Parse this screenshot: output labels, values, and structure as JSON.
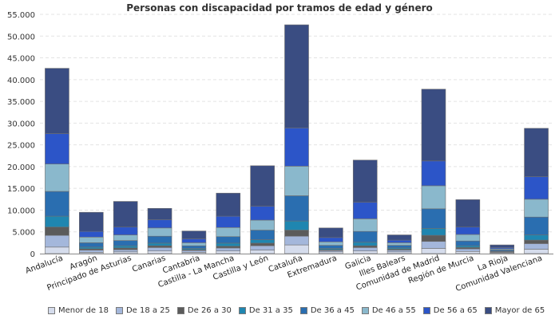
{
  "chart_data": {
    "type": "bar",
    "stacked": true,
    "title": "Personas con discapacidad por tramos de edad y género",
    "xlabel": "",
    "ylabel": "",
    "ylim": [
      0,
      55000
    ],
    "yticks": [
      0,
      5000,
      10000,
      15000,
      20000,
      25000,
      30000,
      35000,
      40000,
      45000,
      50000,
      55000
    ],
    "ytick_labels": [
      "0",
      "5.000",
      "10.000",
      "15.000",
      "20.000",
      "25.000",
      "30.000",
      "35.000",
      "40.000",
      "45.000",
      "50.000",
      "55.000"
    ],
    "grid": true,
    "legend_position": "bottom",
    "categories": [
      "Andalucía",
      "Aragón",
      "Principado de Asturias",
      "Canarias",
      "Cantabria",
      "Castilla - La Mancha",
      "Castilla y León",
      "Cataluña",
      "Extremadura",
      "Galicia",
      "Illes Balears",
      "Comunidad de Madrid",
      "Región de Murcia",
      "La Rioja",
      "Comunidad Valenciana"
    ],
    "series": [
      {
        "name": "Menor de 18",
        "color": "#d5dcec",
        "values": [
          1500,
          300,
          400,
          600,
          300,
          600,
          800,
          2000,
          400,
          600,
          400,
          1200,
          500,
          200,
          1000
        ]
      },
      {
        "name": "De 18 a 25",
        "color": "#a4b7db",
        "values": [
          2700,
          500,
          500,
          800,
          400,
          700,
          1000,
          2000,
          300,
          800,
          400,
          1600,
          600,
          150,
          1300
        ]
      },
      {
        "name": "De 26 a 30",
        "color": "#5b5b5b",
        "values": [
          1900,
          300,
          400,
          400,
          200,
          400,
          600,
          1400,
          200,
          400,
          200,
          1400,
          300,
          100,
          800
        ]
      },
      {
        "name": "De 31 a 35",
        "color": "#1f86b0",
        "values": [
          2500,
          400,
          500,
          600,
          300,
          700,
          800,
          2100,
          300,
          800,
          300,
          1600,
          400,
          100,
          1200
        ]
      },
      {
        "name": "De 36 a 45",
        "color": "#2a6eb0",
        "values": [
          5700,
          1000,
          1200,
          1600,
          600,
          1500,
          2200,
          5800,
          700,
          2500,
          600,
          4500,
          1100,
          300,
          4100
        ]
      },
      {
        "name": "De 46 a 55",
        "color": "#8ab8cc",
        "values": [
          6300,
          1300,
          1300,
          1900,
          700,
          2100,
          2300,
          6800,
          800,
          2900,
          600,
          5300,
          1500,
          250,
          4100
        ]
      },
      {
        "name": "De 56 a 65",
        "color": "#2c55c8",
        "values": [
          7000,
          1300,
          1800,
          1900,
          900,
          2600,
          3200,
          8800,
          1000,
          3800,
          600,
          5700,
          1700,
          300,
          5200
        ]
      },
      {
        "name": "Mayor de 65",
        "color": "#3a4d82",
        "values": [
          15000,
          4400,
          5900,
          2600,
          1800,
          5300,
          9300,
          23700,
          2200,
          9700,
          1200,
          16500,
          6300,
          600,
          11100
        ]
      }
    ]
  }
}
